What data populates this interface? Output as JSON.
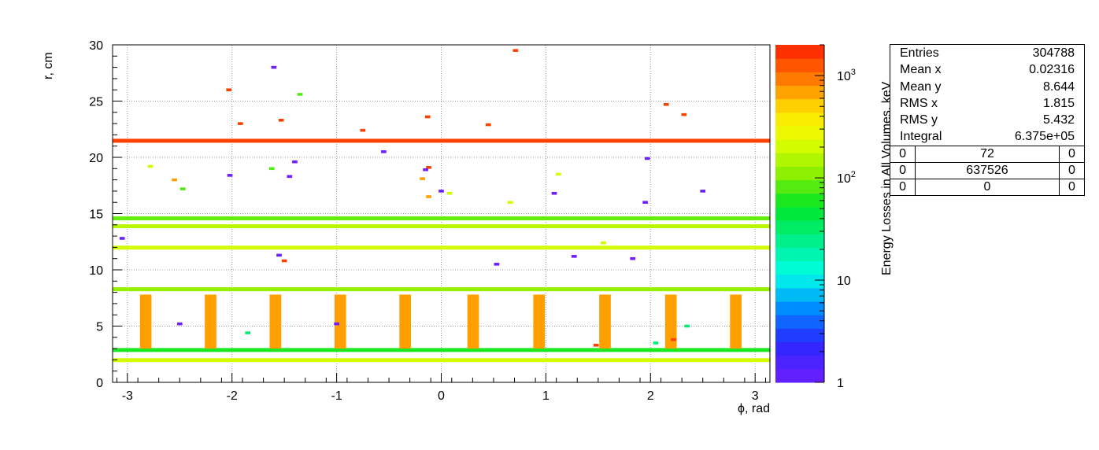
{
  "chart_data": {
    "type": "heatmap",
    "title": "",
    "xlabel": "ϕ, rad",
    "ylabel": "r, cm",
    "zlabel": "Energy Losses in All Volumes, keV",
    "xlim": [
      -3.1416,
      3.1416
    ],
    "ylim": [
      0,
      30
    ],
    "zlim": [
      1,
      2000
    ],
    "z_scale": "log",
    "x_ticks": [
      -3,
      -2,
      -1,
      0,
      1,
      2,
      3
    ],
    "y_ticks": [
      0,
      5,
      10,
      15,
      20,
      25,
      30
    ],
    "z_ticks": [
      1,
      10,
      100,
      1000
    ],
    "grid": true,
    "bands": [
      {
        "r": 1.9,
        "value": 200,
        "phi_range": [
          -3.1416,
          3.1416
        ]
      },
      {
        "r": 2.8,
        "value": 60,
        "phi_range": [
          -3.1416,
          3.1416
        ]
      },
      {
        "r": 8.2,
        "value": 120,
        "phi_range": [
          -3.1416,
          3.1416
        ]
      },
      {
        "r": 11.9,
        "value": 200,
        "phi_range": [
          -3.1416,
          3.1416
        ]
      },
      {
        "r": 13.8,
        "value": 160,
        "phi_range": [
          -3.1416,
          3.1416
        ]
      },
      {
        "r": 14.5,
        "value": 90,
        "phi_range": [
          -3.1416,
          3.1416
        ]
      },
      {
        "r": 21.4,
        "value": 1500,
        "phi_range": [
          -3.1416,
          3.1416
        ]
      }
    ],
    "vertical_strips": [
      {
        "phi": -2.82,
        "r_range": [
          3,
          7.8
        ],
        "value": 700
      },
      {
        "phi": -2.2,
        "r_range": [
          3,
          7.8
        ],
        "value": 700
      },
      {
        "phi": -1.58,
        "r_range": [
          3,
          7.8
        ],
        "value": 700
      },
      {
        "phi": -0.96,
        "r_range": [
          3,
          7.8
        ],
        "value": 700
      },
      {
        "phi": -0.34,
        "r_range": [
          3,
          7.8
        ],
        "value": 700
      },
      {
        "phi": 0.31,
        "r_range": [
          3,
          7.8
        ],
        "value": 700
      },
      {
        "phi": 0.94,
        "r_range": [
          3,
          7.8
        ],
        "value": 700
      },
      {
        "phi": 1.57,
        "r_range": [
          3,
          7.8
        ],
        "value": 700
      },
      {
        "phi": 2.2,
        "r_range": [
          3,
          7.8
        ],
        "value": 700
      },
      {
        "phi": 2.82,
        "r_range": [
          3,
          7.8
        ],
        "value": 700
      }
    ],
    "scattered_cells": [
      {
        "phi": 0.71,
        "r": 29.5,
        "value": 1500
      },
      {
        "phi": -1.6,
        "r": 28.0,
        "value": 1
      },
      {
        "phi": -2.03,
        "r": 26.0,
        "value": 1500
      },
      {
        "phi": -1.35,
        "r": 25.6,
        "value": 80
      },
      {
        "phi": 2.15,
        "r": 24.7,
        "value": 1500
      },
      {
        "phi": 2.32,
        "r": 23.8,
        "value": 1500
      },
      {
        "phi": -0.13,
        "r": 23.6,
        "value": 1500
      },
      {
        "phi": -1.53,
        "r": 23.3,
        "value": 1500
      },
      {
        "phi": -1.92,
        "r": 23.0,
        "value": 1500
      },
      {
        "phi": 0.45,
        "r": 22.9,
        "value": 1500
      },
      {
        "phi": -0.75,
        "r": 22.4,
        "value": 1500
      },
      {
        "phi": -0.55,
        "r": 20.5,
        "value": 1
      },
      {
        "phi": 1.97,
        "r": 19.9,
        "value": 1
      },
      {
        "phi": -1.4,
        "r": 19.6,
        "value": 1
      },
      {
        "phi": -0.12,
        "r": 19.1,
        "value": 1500
      },
      {
        "phi": -0.15,
        "r": 18.9,
        "value": 1
      },
      {
        "phi": -1.62,
        "r": 19.0,
        "value": 80
      },
      {
        "phi": -2.78,
        "r": 19.2,
        "value": 200
      },
      {
        "phi": 1.12,
        "r": 18.5,
        "value": 200
      },
      {
        "phi": -2.02,
        "r": 18.4,
        "value": 1
      },
      {
        "phi": -1.45,
        "r": 18.3,
        "value": 1
      },
      {
        "phi": -0.18,
        "r": 18.1,
        "value": 700
      },
      {
        "phi": -2.55,
        "r": 18.0,
        "value": 700
      },
      {
        "phi": 0.0,
        "r": 17.0,
        "value": 1
      },
      {
        "phi": 2.5,
        "r": 17.0,
        "value": 1
      },
      {
        "phi": 1.95,
        "r": 16.0,
        "value": 1
      },
      {
        "phi": -0.12,
        "r": 16.5,
        "value": 700
      },
      {
        "phi": -2.47,
        "r": 17.2,
        "value": 80
      },
      {
        "phi": 0.66,
        "r": 16.0,
        "value": 200
      },
      {
        "phi": 0.08,
        "r": 16.8,
        "value": 200
      },
      {
        "phi": 1.08,
        "r": 16.8,
        "value": 1
      },
      {
        "phi": -1.5,
        "r": 10.8,
        "value": 1500
      },
      {
        "phi": -1.55,
        "r": 11.3,
        "value": 1
      },
      {
        "phi": 1.27,
        "r": 11.2,
        "value": 1
      },
      {
        "phi": 1.83,
        "r": 11.0,
        "value": 1
      },
      {
        "phi": -3.05,
        "r": 12.8,
        "value": 1
      },
      {
        "phi": 0.53,
        "r": 10.5,
        "value": 1
      },
      {
        "phi": 1.55,
        "r": 12.4,
        "value": 200
      },
      {
        "phi": -2.5,
        "r": 5.2,
        "value": 1
      },
      {
        "phi": -1.0,
        "r": 5.2,
        "value": 1
      },
      {
        "phi": -1.85,
        "r": 4.4,
        "value": 30
      },
      {
        "phi": 2.35,
        "r": 5.0,
        "value": 30
      },
      {
        "phi": 2.05,
        "r": 3.5,
        "value": 30
      },
      {
        "phi": 2.22,
        "r": 3.8,
        "value": 1500
      },
      {
        "phi": 1.48,
        "r": 3.3,
        "value": 1500
      }
    ]
  },
  "stats": {
    "entries_label": "Entries",
    "entries_value": "304788",
    "meanx_label": "Mean x",
    "meanx_value": "0.02316",
    "meany_label": "Mean y",
    "meany_value": "8.644",
    "rmsx_label": "RMS x",
    "rmsx_value": "1.815",
    "rmsy_label": "RMS y",
    "rmsy_value": "5.432",
    "integral_label": "Integral",
    "integral_value": "6.375e+05",
    "grid": [
      [
        "0",
        "72",
        "0"
      ],
      [
        "0",
        "637526",
        "0"
      ],
      [
        "0",
        "0",
        "0"
      ]
    ]
  }
}
